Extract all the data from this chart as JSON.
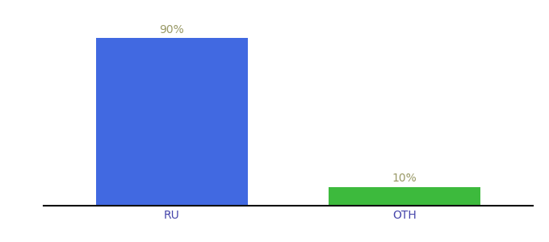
{
  "categories": [
    "RU",
    "OTH"
  ],
  "values": [
    90,
    10
  ],
  "bar_colors": [
    "#4169e1",
    "#3dba3d"
  ],
  "label_texts": [
    "90%",
    "10%"
  ],
  "background_color": "#ffffff",
  "ylim": [
    0,
    100
  ],
  "bar_width": 0.65,
  "label_fontsize": 10,
  "tick_fontsize": 10,
  "label_color": "#999966",
  "tick_color": "#4444aa",
  "spine_color": "#111111",
  "x_positions": [
    0,
    1
  ],
  "xlim": [
    -0.55,
    1.55
  ]
}
